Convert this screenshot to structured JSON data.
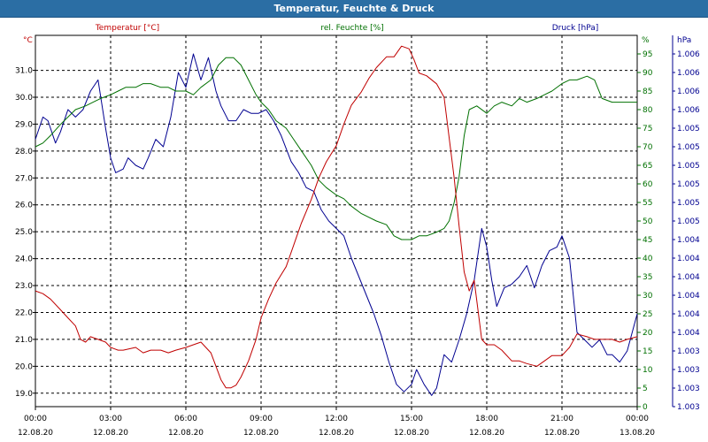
{
  "window": {
    "title": "Temperatur, Feuchte & Druck"
  },
  "chart_data": {
    "type": "line",
    "title": "Temperatur, Feuchte & Druck",
    "x_ticks": [
      {
        "time": "00:00",
        "date": "12.08.20"
      },
      {
        "time": "03:00",
        "date": "12.08.20"
      },
      {
        "time": "06:00",
        "date": "12.08.20"
      },
      {
        "time": "09:00",
        "date": "12.08.20"
      },
      {
        "time": "12:00",
        "date": "12.08.20"
      },
      {
        "time": "15:00",
        "date": "12.08.20"
      },
      {
        "time": "18:00",
        "date": "12.08.20"
      },
      {
        "time": "21:00",
        "date": "12.08.20"
      },
      {
        "time": "00:00",
        "date": "13.08.20"
      }
    ],
    "grid": true,
    "axes": {
      "temperature": {
        "label": "Temperatur [°C]",
        "unit": "°C",
        "color": "#c00000",
        "range": [
          18.5,
          32.3
        ],
        "ticks": [
          19.0,
          20.0,
          21.0,
          22.0,
          23.0,
          24.0,
          25.0,
          26.0,
          27.0,
          28.0,
          29.0,
          30.0,
          31.0
        ]
      },
      "humidity": {
        "label": "rel. Feuchte [%]",
        "unit": "%",
        "color": "#007000",
        "range": [
          0,
          100
        ],
        "ticks": [
          0,
          5,
          10,
          15,
          20,
          25,
          30,
          35,
          40,
          45,
          50,
          55,
          60,
          65,
          70,
          75,
          80,
          85,
          90,
          95
        ]
      },
      "pressure": {
        "label": "Druck [hPa]",
        "unit": "hPa",
        "color": "#000090",
        "range": [
          0,
          100
        ],
        "tick_labels": [
          "1.006",
          "1.006",
          "1.006",
          "1.006",
          "1.005",
          "1.005",
          "1.005",
          "1.005",
          "1.005",
          "1.005",
          "1.004",
          "1.004",
          "1.004",
          "1.004",
          "1.004",
          "1.004",
          "1.003",
          "1.003",
          "1.003",
          "1.003"
        ]
      }
    },
    "series": [
      {
        "name": "Temperatur [°C]",
        "axis": "temperature",
        "color": "#c00000",
        "x_hours": [
          0.0,
          0.3,
          0.6,
          1.0,
          1.3,
          1.6,
          1.8,
          2.0,
          2.2,
          2.5,
          2.8,
          3.0,
          3.3,
          3.5,
          4.0,
          4.3,
          4.6,
          5.0,
          5.3,
          5.6,
          6.0,
          6.3,
          6.6,
          7.0,
          7.2,
          7.4,
          7.6,
          7.8,
          8.0,
          8.2,
          8.5,
          8.8,
          9.0,
          9.3,
          9.6,
          10.0,
          10.3,
          10.6,
          11.0,
          11.3,
          11.6,
          12.0,
          12.3,
          12.6,
          13.0,
          13.3,
          13.6,
          14.0,
          14.3,
          14.6,
          14.9,
          15.1,
          15.3,
          15.6,
          16.0,
          16.3,
          16.5,
          16.7,
          16.9,
          17.1,
          17.3,
          17.5,
          17.8,
          18.0,
          18.3,
          18.6,
          19.0,
          19.3,
          19.6,
          20.0,
          20.3,
          20.6,
          21.0,
          21.3,
          21.6,
          22.0,
          22.3,
          22.6,
          23.0,
          23.3,
          23.6,
          24.0
        ],
        "values": [
          22.8,
          22.7,
          22.5,
          22.1,
          21.8,
          21.5,
          21.0,
          20.9,
          21.1,
          21.0,
          20.9,
          20.7,
          20.6,
          20.6,
          20.7,
          20.5,
          20.6,
          20.6,
          20.5,
          20.6,
          20.7,
          20.8,
          20.9,
          20.5,
          20.0,
          19.5,
          19.2,
          19.2,
          19.3,
          19.6,
          20.2,
          21.0,
          21.8,
          22.5,
          23.1,
          23.7,
          24.5,
          25.3,
          26.2,
          27.0,
          27.6,
          28.2,
          29.0,
          29.7,
          30.2,
          30.7,
          31.1,
          31.5,
          31.5,
          31.9,
          31.8,
          31.4,
          30.9,
          30.8,
          30.5,
          30.0,
          28.5,
          27.0,
          25.2,
          23.5,
          22.8,
          23.2,
          21.0,
          20.8,
          20.8,
          20.6,
          20.2,
          20.2,
          20.1,
          20.0,
          20.2,
          20.4,
          20.4,
          20.7,
          21.2,
          21.1,
          21.0,
          21.0,
          21.0,
          20.9,
          21.0,
          21.1
        ]
      },
      {
        "name": "rel. Feuchte [%]",
        "axis": "humidity",
        "color": "#007000",
        "x_hours": [
          0.0,
          0.3,
          0.6,
          1.0,
          1.3,
          1.6,
          2.0,
          2.3,
          2.6,
          3.0,
          3.3,
          3.6,
          4.0,
          4.3,
          4.6,
          5.0,
          5.3,
          5.6,
          6.0,
          6.3,
          6.6,
          7.0,
          7.3,
          7.6,
          7.9,
          8.2,
          8.5,
          8.8,
          9.0,
          9.3,
          9.6,
          10.0,
          10.3,
          10.6,
          11.0,
          11.3,
          11.6,
          12.0,
          12.3,
          12.6,
          13.0,
          13.3,
          13.6,
          14.0,
          14.3,
          14.6,
          15.0,
          15.3,
          15.6,
          16.0,
          16.3,
          16.5,
          16.7,
          16.9,
          17.1,
          17.3,
          17.6,
          18.0,
          18.3,
          18.6,
          19.0,
          19.3,
          19.6,
          20.0,
          20.3,
          20.6,
          21.0,
          21.3,
          21.6,
          22.0,
          22.3,
          22.6,
          23.0,
          23.3,
          23.6,
          24.0
        ],
        "values": [
          70,
          71,
          73,
          76,
          78,
          80,
          81,
          82,
          83,
          84,
          85,
          86,
          86,
          87,
          87,
          86,
          86,
          85,
          85,
          84,
          86,
          88,
          92,
          94,
          94,
          92,
          88,
          84,
          82,
          80,
          77,
          75,
          72,
          69,
          65,
          61,
          59,
          57,
          56,
          54,
          52,
          51,
          50,
          49,
          46,
          45,
          45,
          46,
          46,
          47,
          48,
          50,
          55,
          62,
          73,
          80,
          81,
          79,
          81,
          82,
          81,
          83,
          82,
          83,
          84,
          85,
          87,
          88,
          88,
          89,
          88,
          83,
          82,
          82,
          82,
          82
        ]
      },
      {
        "name": "Druck [hPa]",
        "axis": "pressure",
        "color": "#000090",
        "x_hours": [
          0.0,
          0.3,
          0.5,
          0.8,
          1.0,
          1.3,
          1.6,
          1.9,
          2.2,
          2.5,
          2.8,
          3.0,
          3.2,
          3.5,
          3.7,
          4.0,
          4.3,
          4.5,
          4.8,
          5.1,
          5.4,
          5.7,
          6.0,
          6.3,
          6.6,
          6.9,
          7.2,
          7.4,
          7.7,
          8.0,
          8.3,
          8.6,
          8.9,
          9.2,
          9.5,
          9.8,
          10.2,
          10.5,
          10.8,
          11.1,
          11.4,
          11.7,
          12.0,
          12.3,
          12.6,
          12.9,
          13.2,
          13.5,
          13.8,
          14.1,
          14.4,
          14.7,
          15.0,
          15.2,
          15.5,
          15.8,
          16.0,
          16.3,
          16.6,
          16.9,
          17.2,
          17.5,
          17.8,
          18.0,
          18.2,
          18.4,
          18.7,
          19.0,
          19.3,
          19.6,
          19.9,
          20.2,
          20.5,
          20.8,
          21.0,
          21.3,
          21.6,
          21.9,
          22.2,
          22.5,
          22.8,
          23.0,
          23.3,
          23.6,
          24.0
        ],
        "values": [
          72,
          78,
          77,
          71,
          74,
          80,
          78,
          80,
          85,
          88,
          75,
          67,
          63,
          64,
          67,
          65,
          64,
          67,
          72,
          70,
          78,
          90,
          86,
          95,
          88,
          94,
          85,
          81,
          77,
          77,
          80,
          79,
          79,
          80,
          77,
          73,
          66,
          63,
          59,
          58,
          53,
          50,
          48,
          46,
          40,
          35,
          30,
          25,
          19,
          12,
          6,
          4,
          6,
          10,
          6,
          3,
          5,
          14,
          12,
          18,
          25,
          34,
          48,
          43,
          34,
          27,
          32,
          33,
          35,
          38,
          32,
          38,
          42,
          43,
          46,
          40,
          20,
          18,
          16,
          18,
          14,
          14,
          12,
          15,
          25
        ]
      }
    ]
  }
}
